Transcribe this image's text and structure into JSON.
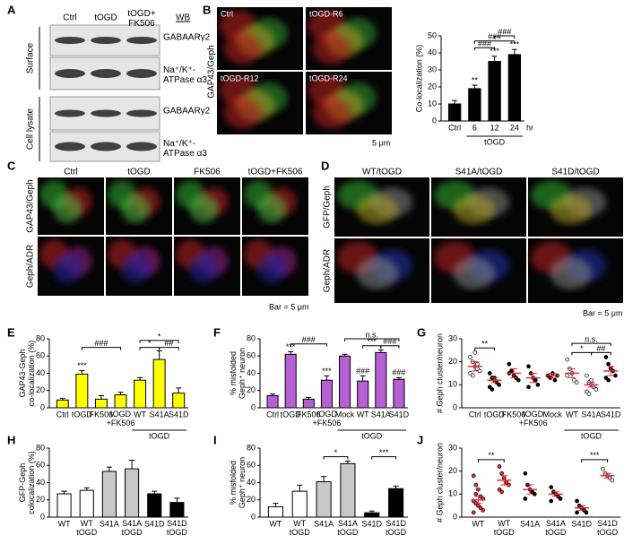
{
  "letters": {
    "a": "A",
    "b": "B",
    "c": "C",
    "d": "D",
    "e": "E",
    "f": "F",
    "g": "G",
    "h": "H",
    "i": "I",
    "j": "J"
  },
  "blot": {
    "columns": [
      "Ctrl",
      "tOGD",
      "tOGD+\nFK506"
    ],
    "method": "WB",
    "sections": [
      "Surface",
      "Cell lysate"
    ],
    "bands": [
      "GABAARγ2",
      "Na⁺/K⁺-\nATPase α3"
    ]
  },
  "images_b": {
    "labels": [
      "Ctrl",
      "tOGD-R6",
      "tOGD-R12",
      "tOGD-R24"
    ],
    "stain": "GAP43/Geph",
    "scale": "5 μm"
  },
  "images_c": {
    "columns": [
      "Ctrl",
      "tOGD",
      "FK506",
      "tOGD+FK506"
    ],
    "rows": [
      "GAP43/Geph",
      "Geph/ADR"
    ],
    "scale": "Bar = 5 μm"
  },
  "images_d": {
    "columns": [
      "WT/tOGD",
      "S41A/tOGD",
      "S41D/tOGD"
    ],
    "rows": [
      "GFP/Geph",
      "Geph/ADR"
    ],
    "scale": "Bar = 5 μm"
  },
  "chart_data": [
    {
      "type": "bar",
      "ylabel": "Co-localization (%)",
      "categories": [
        "Ctrl",
        "6",
        "12",
        "24"
      ],
      "values": [
        10,
        19,
        35,
        39
      ],
      "errors": [
        2,
        2,
        3,
        3
      ],
      "sig": [
        null,
        "**",
        "***",
        "***"
      ],
      "color": "#000000",
      "ylim": [
        0,
        50
      ],
      "yticks": [
        0,
        10,
        20,
        30,
        40,
        50
      ],
      "group": {
        "label": "tOGD",
        "from": 1,
        "to": 3
      },
      "x_unit": "hr",
      "brackets": [
        {
          "text": "###",
          "from": 1,
          "to": 2,
          "y": 43
        },
        {
          "text": "###",
          "from": 1,
          "to": 3,
          "y": 47
        },
        {
          "text": "###",
          "from": 2,
          "to": 3,
          "y": 50
        }
      ]
    },
    {
      "type": "bar",
      "ylabel": "GAP43-Geph\nco-localization (%)",
      "categories": [
        "Ctrl",
        "tOGD",
        "FK506",
        "tOGD\n+FK506",
        "WT",
        "S41A",
        "S41D"
      ],
      "values": [
        9,
        39,
        10,
        15,
        32,
        56,
        17
      ],
      "errors": [
        2,
        4,
        4,
        3,
        3,
        10,
        6
      ],
      "sig": [
        null,
        "***",
        null,
        null,
        null,
        null,
        null
      ],
      "color": "#ffff00",
      "ylim": [
        0,
        80
      ],
      "yticks": [
        0,
        20,
        40,
        60,
        80
      ],
      "group": {
        "label": "tOGD",
        "from": 4,
        "to": 6
      },
      "brackets": [
        {
          "text": "###",
          "from": 1,
          "to": 3,
          "y": 70
        },
        {
          "text": "*",
          "from": 4,
          "to": 5,
          "y": 70
        },
        {
          "text": "##",
          "from": 5,
          "to": 6,
          "y": 70
        },
        {
          "text": "*",
          "from": 4,
          "to": 6,
          "y": 78
        }
      ]
    },
    {
      "type": "bar",
      "ylabel": "% misfolded\nGeph⁺ neuron",
      "categories": [
        "Ctrl",
        "tOGD",
        "FK506",
        "tOGD\n+FK506",
        "Mock",
        "WT",
        "S41A",
        "S41D"
      ],
      "values": [
        14,
        62,
        10,
        32,
        60,
        31,
        64,
        33
      ],
      "errors": [
        2,
        3,
        2,
        5,
        2,
        6,
        3,
        2
      ],
      "sig": [
        null,
        "***",
        null,
        "***",
        null,
        "###",
        null,
        "###"
      ],
      "color": "#b760d4",
      "ylim": [
        0,
        80
      ],
      "yticks": [
        0,
        20,
        40,
        60,
        80
      ],
      "group": {
        "label": "tOGD",
        "from": 4,
        "to": 7
      },
      "brackets": [
        {
          "text": "###",
          "from": 1,
          "to": 3,
          "y": 74
        },
        {
          "text": "***",
          "from": 5,
          "to": 6,
          "y": 72
        },
        {
          "text": "###",
          "from": 6,
          "to": 7,
          "y": 72
        },
        {
          "text": "n.s.",
          "from": 4,
          "to": 7,
          "y": 80
        }
      ]
    },
    {
      "type": "dot",
      "ylabel": "# Geph cluster/neuron",
      "categories": [
        "Ctrl",
        "tOGD",
        "FK506",
        "tOGD\n+FK506",
        "Mock",
        "WT",
        "S41A",
        "S41D"
      ],
      "points": [
        [
          22,
          20,
          18,
          17,
          16,
          15,
          14,
          24,
          19
        ],
        [
          15,
          13,
          12,
          11,
          10,
          9,
          8,
          13
        ],
        [
          19,
          16,
          14,
          13,
          12,
          15
        ],
        [
          18,
          15,
          13,
          12,
          10,
          9
        ],
        [
          14,
          13,
          15,
          12,
          14
        ],
        [
          21,
          17,
          15,
          12,
          11,
          14
        ],
        [
          14,
          11,
          10,
          9,
          8,
          7,
          6,
          12
        ],
        [
          22,
          19,
          17,
          16,
          14,
          13,
          12,
          17
        ]
      ],
      "means": [
        18,
        12,
        15,
        13,
        14,
        15,
        10,
        16
      ],
      "errors": [
        2,
        1,
        2,
        2,
        1,
        2,
        1,
        2
      ],
      "point_fill": [
        "#ffffff",
        "#000000",
        "#000000",
        "#000000",
        "#000000",
        "#ffffff",
        "#ffffff",
        "#000000"
      ],
      "mean_color": "#e0303a",
      "ylim": [
        0,
        30
      ],
      "yticks": [
        0,
        10,
        20,
        30
      ],
      "group": {
        "label": "tOGD",
        "from": 5,
        "to": 7
      },
      "brackets": [
        {
          "text": "**",
          "from": 0,
          "to": 1,
          "y": 26
        },
        {
          "text": "*",
          "from": 5,
          "to": 6,
          "y": 24
        },
        {
          "text": "##",
          "from": 6,
          "to": 7,
          "y": 24
        },
        {
          "text": "n.s.",
          "from": 5,
          "to": 7,
          "y": 28
        }
      ]
    },
    {
      "type": "bar",
      "ylabel": "GFP-Geph\ncolocalization (%)",
      "categories": [
        "WT",
        "WT\ntOGD",
        "S41A",
        "S41A\ntOGD",
        "S41D",
        "S41D\ntOGD"
      ],
      "values": [
        27,
        31,
        53,
        56,
        27,
        17
      ],
      "errors": [
        3,
        3,
        5,
        10,
        3,
        5
      ],
      "colors": [
        "#ffffff",
        "#ffffff",
        "#c8c8c8",
        "#c8c8c8",
        "#000000",
        "#000000"
      ],
      "ylim": [
        0,
        80
      ],
      "yticks": [
        0,
        20,
        40,
        60,
        80
      ]
    },
    {
      "type": "bar",
      "ylabel": "% misfolded\nGeph⁺ neuron",
      "categories": [
        "WT",
        "WT\ntOGD",
        "S41A",
        "S41A\ntOGD",
        "S41D",
        "S41D\ntOGD"
      ],
      "values": [
        12,
        30,
        41,
        62,
        5,
        33
      ],
      "errors": [
        4,
        7,
        6,
        3,
        2,
        3
      ],
      "colors": [
        "#ffffff",
        "#ffffff",
        "#c8c8c8",
        "#c8c8c8",
        "#000000",
        "#000000"
      ],
      "ylim": [
        0,
        80
      ],
      "yticks": [
        0,
        20,
        40,
        60,
        80
      ],
      "brackets": [
        {
          "text": "*",
          "from": 2,
          "to": 3,
          "y": 70
        },
        {
          "text": "***",
          "from": 4,
          "to": 5,
          "y": 70
        }
      ]
    },
    {
      "type": "dot",
      "ylabel": "# Geph cluster/neuron",
      "categories": [
        "WT",
        "WT\ntOGD",
        "S41A",
        "S41A\ntOGD",
        "S41D",
        "S41D\ntOGD"
      ],
      "points": [
        [
          18,
          14,
          12,
          9,
          8,
          7,
          6,
          5,
          4,
          3,
          2,
          10
        ],
        [
          22,
          19,
          17,
          15,
          14,
          12,
          11
        ],
        [
          19,
          14,
          12,
          11,
          10,
          8
        ],
        [
          13,
          11,
          10,
          9,
          8,
          7
        ],
        [
          7,
          5,
          4,
          3,
          2,
          2
        ],
        [
          21,
          19,
          18,
          17,
          16
        ]
      ],
      "means": [
        7.5,
        16,
        12,
        10,
        4,
        18
      ],
      "errors": [
        1.5,
        2,
        2,
        1,
        1,
        1
      ],
      "point_fill": [
        "#e0303a",
        "#e0303a",
        "#000000",
        "#000000",
        "#000000",
        "#ffffff"
      ],
      "mean_color": "#e0303a",
      "ylim": [
        0,
        30
      ],
      "yticks": [
        0,
        10,
        20,
        30
      ],
      "brackets": [
        {
          "text": "**",
          "from": 0,
          "to": 1,
          "y": 25
        },
        {
          "text": "***",
          "from": 4,
          "to": 5,
          "y": 25
        }
      ]
    }
  ]
}
